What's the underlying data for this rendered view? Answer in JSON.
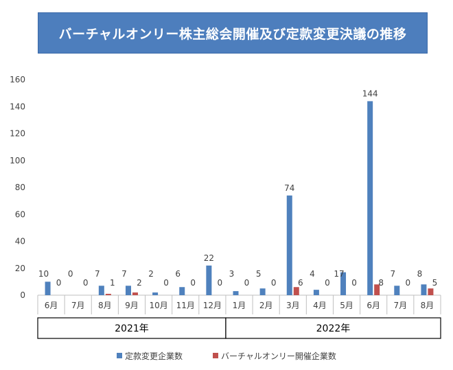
{
  "chart_data": {
    "type": "bar",
    "title": "バーチャルオンリー株主総会開催及び定款変更決議の推移",
    "categories": [
      "6月",
      "7月",
      "8月",
      "9月",
      "10月",
      "11月",
      "12月",
      "1月",
      "2月",
      "3月",
      "4月",
      "5月",
      "6月",
      "7月",
      "8月"
    ],
    "year_groups": [
      {
        "label": "2021年",
        "span": 7
      },
      {
        "label": "2022年",
        "span": 8
      }
    ],
    "series": [
      {
        "name": "定款変更企業数",
        "color": "#4f81bd",
        "values": [
          10,
          0,
          7,
          7,
          2,
          6,
          22,
          3,
          5,
          74,
          4,
          17,
          144,
          7,
          8
        ]
      },
      {
        "name": "バーチャルオンリー開催企業数",
        "color": "#c0504d",
        "values": [
          0,
          0,
          1,
          2,
          0,
          0,
          0,
          0,
          0,
          6,
          0,
          0,
          8,
          0,
          5
        ]
      }
    ],
    "ylim": [
      0,
      160
    ],
    "yticks": [
      0,
      20,
      40,
      60,
      80,
      100,
      120,
      140,
      160
    ],
    "grid": false,
    "legend_position": "bottom"
  }
}
